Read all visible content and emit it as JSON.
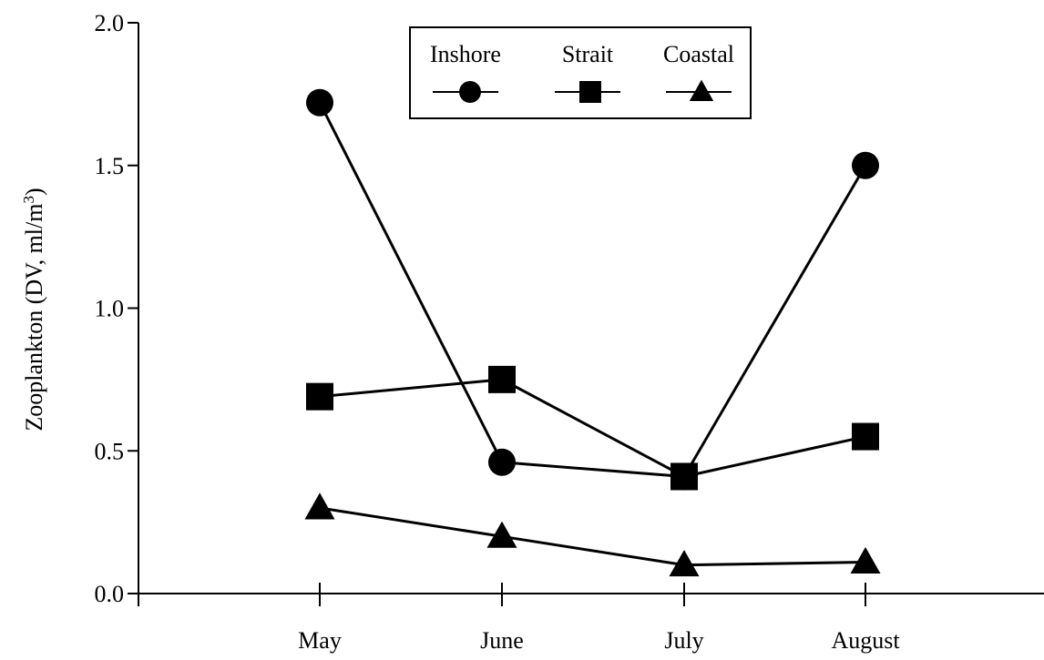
{
  "chart_data": {
    "type": "line",
    "title": "",
    "xlabel": "",
    "ylabel": "Zooplankton (DV, ml/m",
    "ylabel_sup": "3",
    "ylabel_tail": ")",
    "categories": [
      "May",
      "June",
      "July",
      "August"
    ],
    "ylim": [
      0,
      2.0
    ],
    "yticks": [
      "0.0",
      "0.5",
      "1.0",
      "1.5",
      "2.0"
    ],
    "grid": false,
    "legend_position": "top-center",
    "series": [
      {
        "name": "Inshore",
        "marker": "circle",
        "values": [
          1.72,
          0.46,
          0.41,
          1.5
        ]
      },
      {
        "name": "Strait",
        "marker": "square",
        "values": [
          0.69,
          0.75,
          0.41,
          0.55
        ]
      },
      {
        "name": "Coastal",
        "marker": "triangle",
        "values": [
          0.3,
          0.2,
          0.1,
          0.11
        ]
      }
    ],
    "line_color": "#000000"
  }
}
